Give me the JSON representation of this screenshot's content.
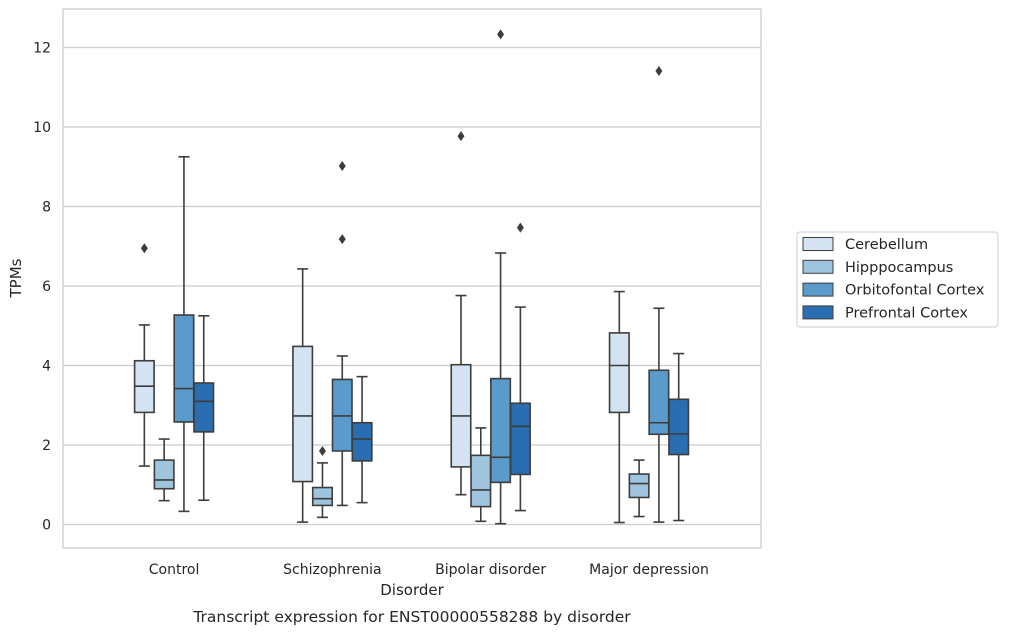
{
  "chart_data": {
    "type": "box",
    "xlabel": "Disorder",
    "ylabel": "TPMs",
    "caption": "Transcript expression for ENST00000558288 by disorder",
    "categories": [
      "Control",
      "Schizophrenia",
      "Bipolar disorder",
      "Major depression"
    ],
    "ylim": [
      -0.6,
      13.0
    ],
    "yticks": [
      0,
      2,
      4,
      6,
      8,
      10,
      12
    ],
    "grid": "horizontal",
    "legend_position": "right-outside",
    "series": [
      {
        "name": "Cerebellum",
        "color": "#d3e3f2",
        "boxes": [
          {
            "whislo": 1.47,
            "q1": 2.82,
            "med": 3.48,
            "q3": 4.12,
            "whishi": 5.02,
            "fliers": [
              6.95
            ]
          },
          {
            "whislo": 0.06,
            "q1": 1.08,
            "med": 2.73,
            "q3": 4.48,
            "whishi": 6.43,
            "fliers": []
          },
          {
            "whislo": 0.75,
            "q1": 1.45,
            "med": 2.73,
            "q3": 4.02,
            "whishi": 5.76,
            "fliers": [
              9.77
            ]
          },
          {
            "whislo": 0.05,
            "q1": 2.82,
            "med": 4.0,
            "q3": 4.82,
            "whishi": 5.86,
            "fliers": []
          }
        ]
      },
      {
        "name": "Hipppocampus",
        "color": "#9fc4de",
        "boxes": [
          {
            "whislo": 0.6,
            "q1": 0.9,
            "med": 1.12,
            "q3": 1.62,
            "whishi": 2.15,
            "fliers": []
          },
          {
            "whislo": 0.18,
            "q1": 0.48,
            "med": 0.65,
            "q3": 0.93,
            "whishi": 1.55,
            "fliers": [
              1.85
            ]
          },
          {
            "whislo": 0.08,
            "q1": 0.45,
            "med": 0.87,
            "q3": 1.74,
            "whishi": 2.43,
            "fliers": []
          },
          {
            "whislo": 0.2,
            "q1": 0.68,
            "med": 1.03,
            "q3": 1.27,
            "whishi": 1.62,
            "fliers": []
          }
        ]
      },
      {
        "name": "Orbitofontal Cortex",
        "color": "#5b9bcc",
        "boxes": [
          {
            "whislo": 0.33,
            "q1": 2.58,
            "med": 3.42,
            "q3": 5.27,
            "whishi": 9.25,
            "fliers": []
          },
          {
            "whislo": 0.48,
            "q1": 1.85,
            "med": 2.73,
            "q3": 3.65,
            "whishi": 4.24,
            "fliers": [
              7.18,
              9.02
            ]
          },
          {
            "whislo": 0.02,
            "q1": 1.06,
            "med": 1.69,
            "q3": 3.67,
            "whishi": 6.83,
            "fliers": [
              12.33
            ]
          },
          {
            "whislo": 0.06,
            "q1": 2.27,
            "med": 2.56,
            "q3": 3.88,
            "whishi": 5.44,
            "fliers": [
              11.41
            ]
          }
        ]
      },
      {
        "name": "Prefrontal Cortex",
        "color": "#2a6db1",
        "boxes": [
          {
            "whislo": 0.61,
            "q1": 2.33,
            "med": 3.1,
            "q3": 3.56,
            "whishi": 5.25,
            "fliers": []
          },
          {
            "whislo": 0.55,
            "q1": 1.6,
            "med": 2.15,
            "q3": 2.56,
            "whishi": 3.72,
            "fliers": []
          },
          {
            "whislo": 0.35,
            "q1": 1.26,
            "med": 2.47,
            "q3": 3.05,
            "whishi": 5.47,
            "fliers": [
              7.47
            ]
          },
          {
            "whislo": 0.1,
            "q1": 1.76,
            "med": 2.28,
            "q3": 3.15,
            "whishi": 4.3,
            "fliers": []
          }
        ]
      }
    ]
  }
}
